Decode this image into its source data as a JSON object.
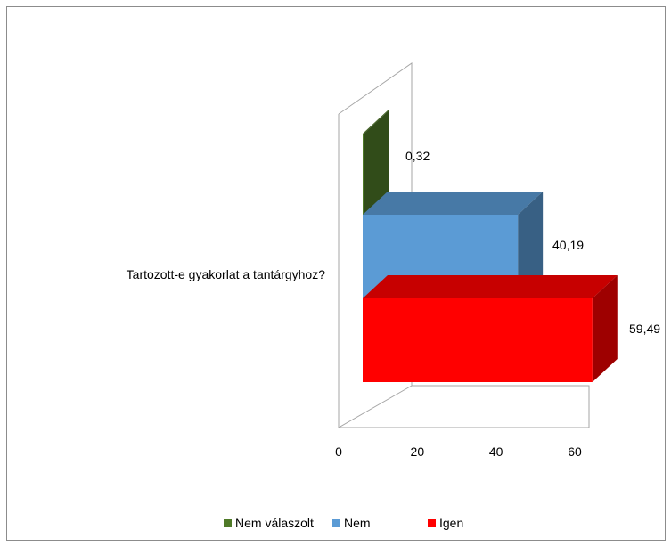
{
  "chart_data": {
    "type": "bar",
    "orientation": "horizontal",
    "style": "3d",
    "categories": [
      "Tartozott-e gyakorlat a tantárgyhoz?"
    ],
    "series": [
      {
        "name": "Nem válaszolt",
        "values": [
          0.32
        ],
        "label": "0,32",
        "color": "#4f7a28"
      },
      {
        "name": "Nem",
        "values": [
          40.19
        ],
        "label": "40,19",
        "color": "#5b9bd5"
      },
      {
        "name": "Igen",
        "values": [
          59.49
        ],
        "label": "59,49",
        "color": "#ff0000"
      }
    ],
    "xlim": [
      0,
      60
    ],
    "x_ticks": [
      "0",
      "20",
      "40",
      "60"
    ],
    "title": "",
    "xlabel": "",
    "ylabel": "",
    "grid": false,
    "legend_position": "bottom"
  }
}
